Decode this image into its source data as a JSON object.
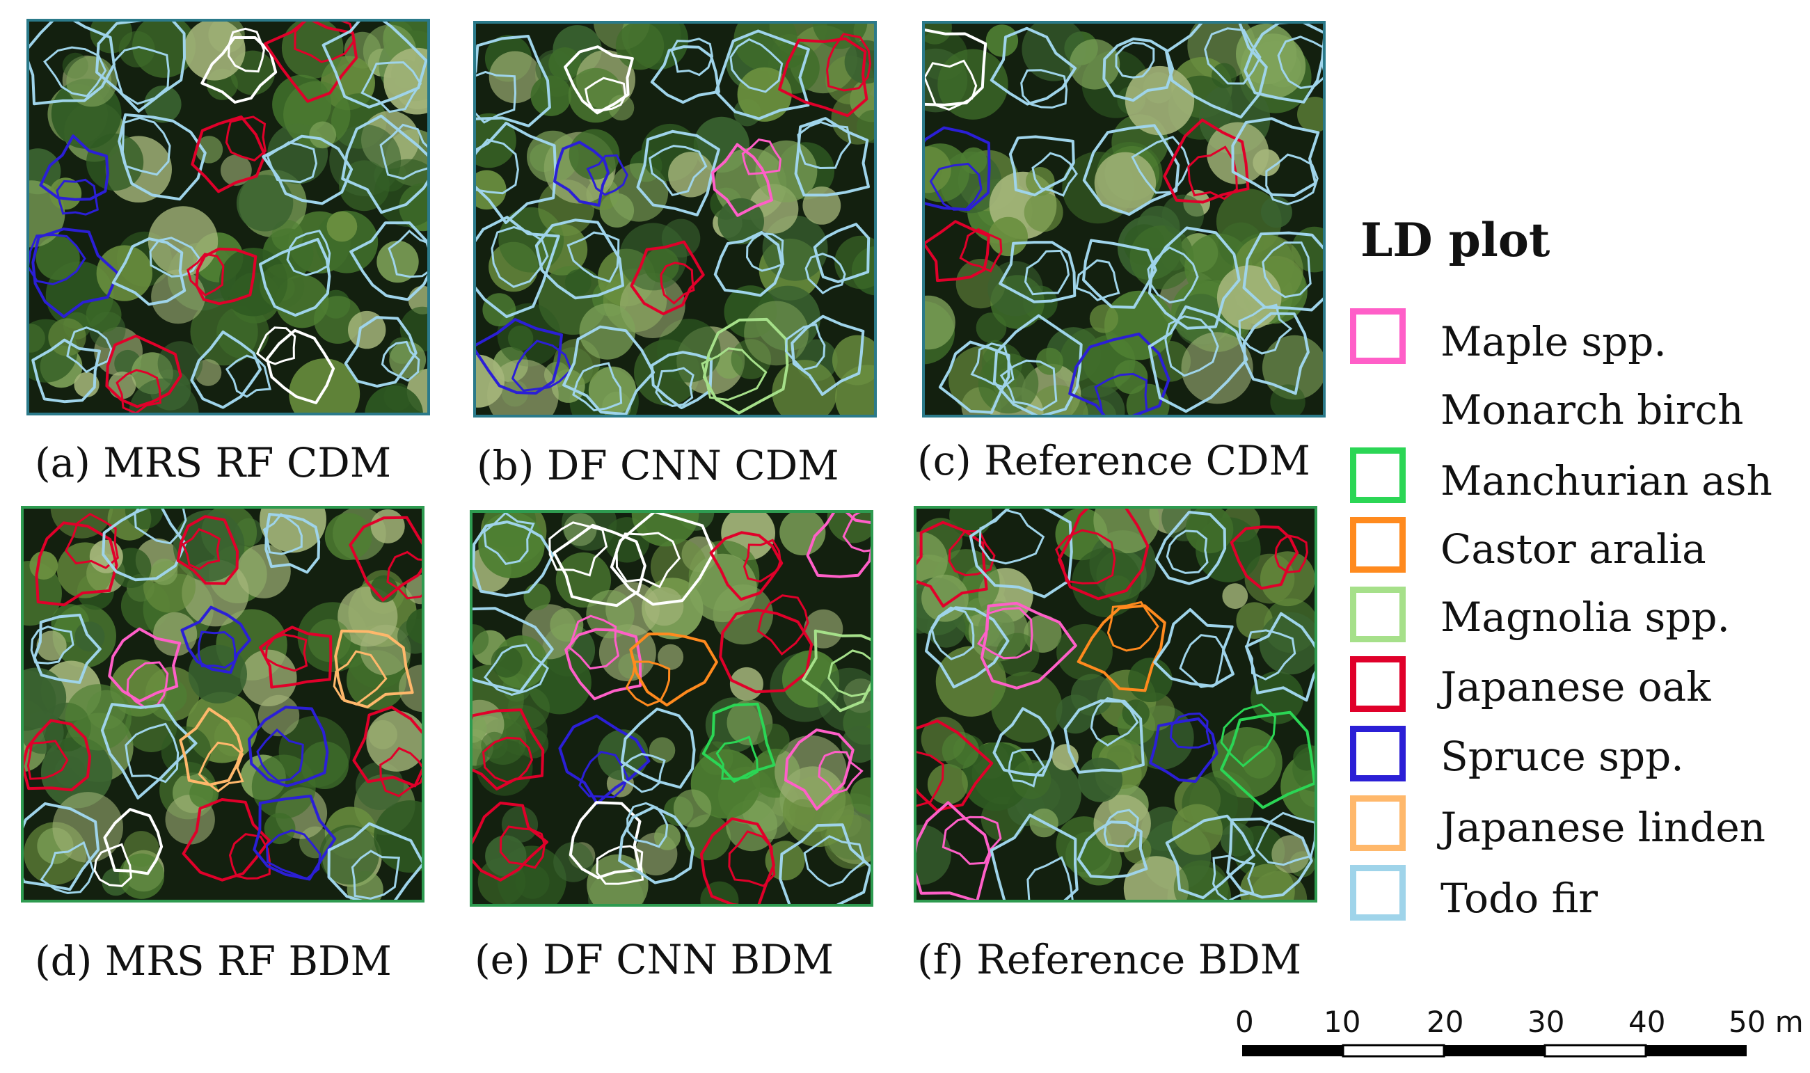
{
  "panels": [
    {
      "id": "a",
      "caption": "(a) MRS RF CDM",
      "border": "#2b7a8a",
      "crowns": [
        "#9fd4ea",
        "#9fd4ea",
        "#ffffff",
        "#e0002a",
        "#9fd4ea",
        "#2b1fd6",
        "#9fd4ea",
        "#e0002a",
        "#9fd4ea",
        "#9fd4ea",
        "#2b1fd6",
        "#9fd4ea",
        "#e0002a",
        "#9fd4ea",
        "#9fd4ea",
        "#9fd4ea",
        "#e0002a",
        "#9fd4ea",
        "#ffffff",
        "#9fd4ea"
      ]
    },
    {
      "id": "b",
      "caption": "(b) DF CNN CDM",
      "border": "#2b7a8a",
      "crowns": [
        "#9fd4ea",
        "#ffffff",
        "#9fd4ea",
        "#9fd4ea",
        "#e0002a",
        "#9fd4ea",
        "#2b1fd6",
        "#9fd4ea",
        "#ff5fc8",
        "#9fd4ea",
        "#9fd4ea",
        "#9fd4ea",
        "#e0002a",
        "#9fd4ea",
        "#9fd4ea",
        "#2b1fd6",
        "#9fd4ea",
        "#9fd4ea",
        "#a6e08a",
        "#9fd4ea"
      ]
    },
    {
      "id": "c",
      "caption": "(c) Reference CDM",
      "border": "#2b7a8a",
      "crowns": [
        "#ffffff",
        "#9fd4ea",
        "#9fd4ea",
        "#9fd4ea",
        "#9fd4ea",
        "#2b1fd6",
        "#9fd4ea",
        "#9fd4ea",
        "#e0002a",
        "#9fd4ea",
        "#e0002a",
        "#9fd4ea",
        "#9fd4ea",
        "#9fd4ea",
        "#9fd4ea",
        "#9fd4ea",
        "#9fd4ea",
        "#2b1fd6",
        "#9fd4ea",
        "#9fd4ea"
      ]
    },
    {
      "id": "d",
      "caption": "(d) MRS RF BDM",
      "border": "#2e9b50",
      "crowns": [
        "#e0002a",
        "#9fd4ea",
        "#e0002a",
        "#9fd4ea",
        "#e0002a",
        "#9fd4ea",
        "#ff5fc8",
        "#2b1fd6",
        "#e0002a",
        "#ffb86b",
        "#e0002a",
        "#9fd4ea",
        "#ffb86b",
        "#2b1fd6",
        "#e0002a",
        "#9fd4ea",
        "#ffffff",
        "#e0002a",
        "#2b1fd6",
        "#9fd4ea"
      ]
    },
    {
      "id": "e",
      "caption": "(e) DF CNN BDM",
      "border": "#2e9b50",
      "crowns": [
        "#9fd4ea",
        "#ffffff",
        "#ffffff",
        "#e0002a",
        "#ff5fc8",
        "#9fd4ea",
        "#ff5fc8",
        "#ff8a1e",
        "#e0002a",
        "#a6e08a",
        "#e0002a",
        "#2b1fd6",
        "#9fd4ea",
        "#2bd655",
        "#ff5fc8",
        "#e0002a",
        "#ffffff",
        "#9fd4ea",
        "#e0002a",
        "#9fd4ea"
      ]
    },
    {
      "id": "f",
      "caption": "(f) Reference BDM",
      "border": "#2e9b50",
      "crowns": [
        "#e0002a",
        "#9fd4ea",
        "#e0002a",
        "#9fd4ea",
        "#e0002a",
        "#9fd4ea",
        "#ff5fc8",
        "#ff8a1e",
        "#9fd4ea",
        "#9fd4ea",
        "#e0002a",
        "#9fd4ea",
        "#9fd4ea",
        "#2b1fd6",
        "#2bd655",
        "#ff5fc8",
        "#9fd4ea",
        "#9fd4ea",
        "#9fd4ea",
        "#9fd4ea"
      ]
    }
  ],
  "legend": {
    "title": "LD plot",
    "items": [
      {
        "label": "Maple spp.",
        "color": "#ff5fc8"
      },
      {
        "label": "Monarch birch",
        "color": "#ffffff"
      },
      {
        "label": "Manchurian ash",
        "color": "#2bd655"
      },
      {
        "label": "Castor aralia",
        "color": "#ff8a1e"
      },
      {
        "label": "Magnolia spp.",
        "color": "#a6e08a"
      },
      {
        "label": "Japanese oak",
        "color": "#e0002a"
      },
      {
        "label": "Spruce spp.",
        "color": "#2b1fd6"
      },
      {
        "label": "Japanese linden",
        "color": "#ffb86b"
      },
      {
        "label": "Todo fir",
        "color": "#9fd4ea"
      }
    ]
  },
  "scale_bar": {
    "ticks": [
      "0",
      "10",
      "20",
      "30",
      "40",
      "50 m"
    ]
  }
}
